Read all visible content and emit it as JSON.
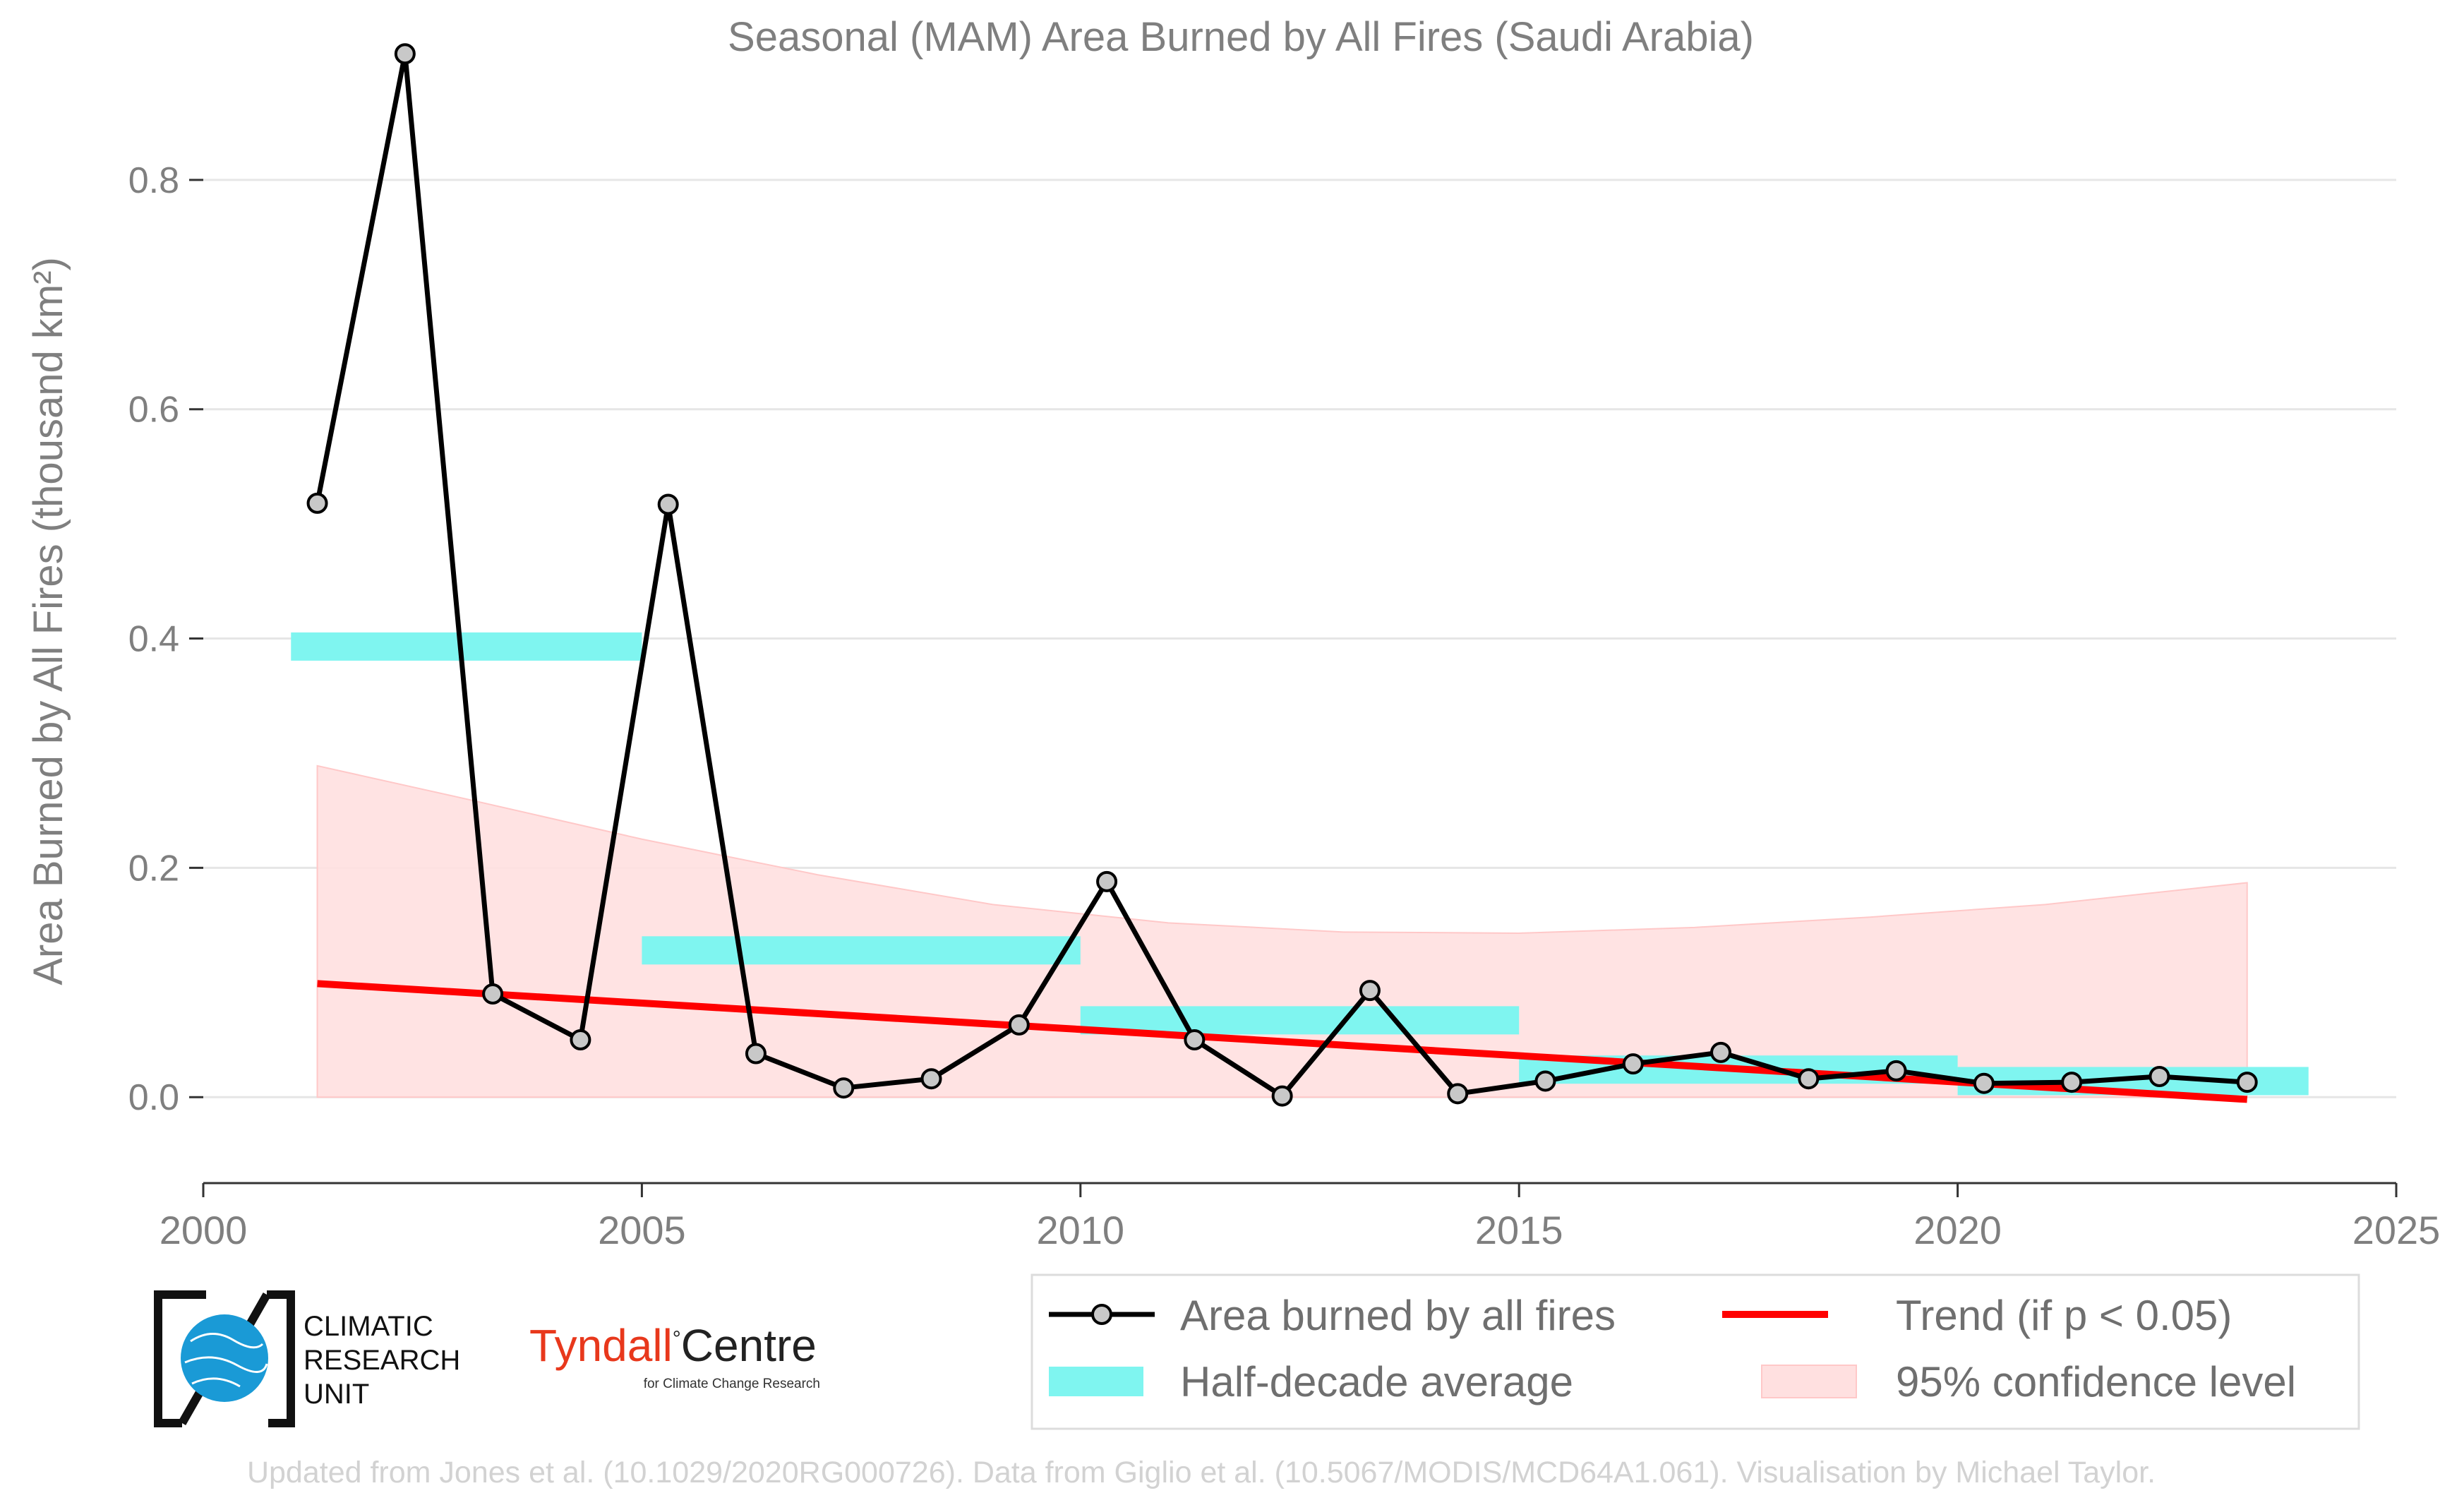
{
  "chart_data": {
    "type": "line",
    "title": "Seasonal (MAM) Area Burned by All Fires (Saudi Arabia)",
    "ylabel": "Area Burned by All Fires (thousand km²)",
    "xlabel": "",
    "xlim": [
      2000,
      2025
    ],
    "ylim": [
      -0.075,
      0.92
    ],
    "x_ticks": [
      "2000",
      "2005",
      "2010",
      "2015",
      "2020",
      "2025"
    ],
    "y_ticks": [
      "0.0",
      "0.2",
      "0.4",
      "0.6",
      "0.8"
    ],
    "grid": "horizontal",
    "series": [
      {
        "name": "Area burned by all fires",
        "color": "#000000",
        "marker_fill": "#c8c8c8",
        "x": [
          2001.3,
          2002.3,
          2003.3,
          2004.3,
          2005.3,
          2006.3,
          2007.3,
          2008.3,
          2009.3,
          2010.3,
          2011.3,
          2012.3,
          2013.3,
          2014.3,
          2015.3,
          2016.3,
          2017.3,
          2018.3,
          2019.3,
          2020.3,
          2021.3,
          2022.3,
          2023.3
        ],
        "y": [
          0.518,
          0.91,
          0.09,
          0.05,
          0.517,
          0.038,
          0.008,
          0.016,
          0.063,
          0.188,
          0.05,
          0.001,
          0.093,
          0.003,
          0.014,
          0.029,
          0.039,
          0.016,
          0.023,
          0.012,
          0.013,
          0.018,
          0.013
        ]
      }
    ],
    "half_decade_average": {
      "name": "Half-decade average",
      "color": "#7ff5f0",
      "segments": [
        {
          "x0": 2001,
          "x1": 2005,
          "y": 0.393
        },
        {
          "x0": 2005,
          "x1": 2010,
          "y": 0.128
        },
        {
          "x0": 2010,
          "x1": 2015,
          "y": 0.067
        },
        {
          "x0": 2015,
          "x1": 2020,
          "y": 0.024
        },
        {
          "x0": 2020,
          "x1": 2024,
          "y": 0.014
        }
      ]
    },
    "trend": {
      "name": "Trend (if p < 0.05)",
      "color": "#ff0000",
      "x": [
        2001.3,
        2023.3
      ],
      "y": [
        0.099,
        -0.002
      ]
    },
    "confidence_band": {
      "name": "95% confidence level",
      "color": "#ffe0e0",
      "x": [
        2001.3,
        2003.0,
        2005.0,
        2007.0,
        2009.0,
        2011.0,
        2013.0,
        2015.0,
        2017.0,
        2019.0,
        2021.0,
        2023.3
      ],
      "upper": [
        0.289,
        0.26,
        0.225,
        0.194,
        0.168,
        0.152,
        0.144,
        0.143,
        0.148,
        0.157,
        0.168,
        0.187
      ],
      "lower": [
        0.0,
        0.0,
        0.0,
        0.0,
        0.0,
        0.0,
        0.0,
        0.0,
        0.0,
        0.0,
        0.0,
        0.0
      ]
    },
    "legend": {
      "position": "bottom-right",
      "items": [
        "Area burned by all fires",
        "Trend (if p < 0.05)",
        "Half-decade average",
        "95% confidence level"
      ]
    }
  },
  "logos": {
    "cru": {
      "lines": [
        "CLIMATIC",
        "RESEARCH",
        "UNIT"
      ],
      "accent": "#1a9ad6"
    },
    "tyndall": {
      "main_a": "Tyndall",
      "degree": "°",
      "main_b": "Centre",
      "sub": "for Climate Change Research",
      "color_a": "#e8381c",
      "color_b": "#222222"
    }
  },
  "credit": "Updated from Jones et al. (10.1029/2020RG000726). Data from Giglio et al. (10.5067/MODIS/MCD64A1.061). Visualisation by Michael Taylor."
}
